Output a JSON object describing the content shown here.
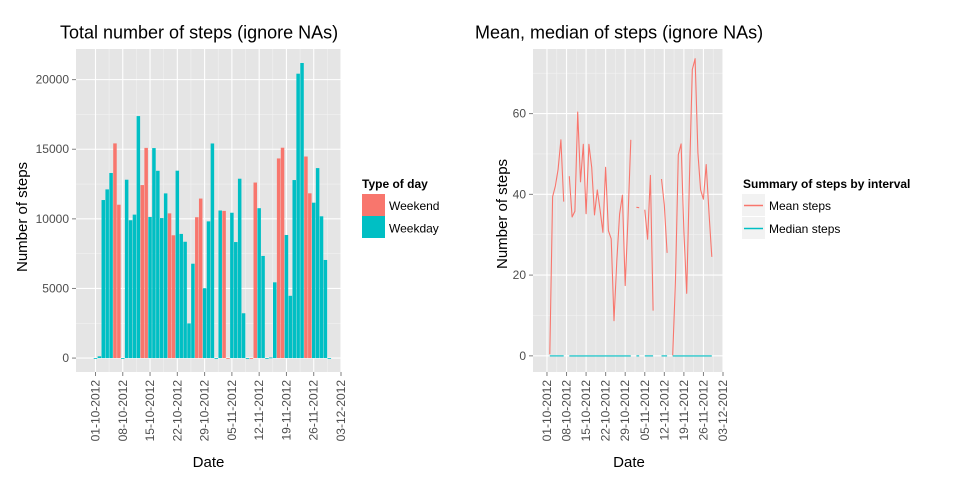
{
  "chart_data": [
    {
      "type": "bar",
      "title": "Total number of steps (ignore NAs)",
      "xlabel": "Date",
      "ylabel": "Number of steps",
      "ylim": [
        -1000,
        22200
      ],
      "y_ticks": [
        0,
        5000,
        10000,
        15000,
        20000
      ],
      "x_ticks": [
        "01-10-2012",
        "08-10-2012",
        "15-10-2012",
        "22-10-2012",
        "29-10-2012",
        "05-11-2012",
        "12-11-2012",
        "19-11-2012",
        "26-11-2012",
        "03-12-2012"
      ],
      "xlim": [
        "2012-09-26",
        "2012-12-03"
      ],
      "grid": true,
      "legend": {
        "title": "Type of day",
        "position": "right",
        "entries": [
          {
            "name": "Weekend",
            "color": "#F8766D"
          },
          {
            "name": "Weekday",
            "color": "#00BFC4"
          }
        ]
      },
      "bars": [
        {
          "date": "2012-10-01",
          "steps": 0,
          "type": "Weekday"
        },
        {
          "date": "2012-10-02",
          "steps": 126,
          "type": "Weekday"
        },
        {
          "date": "2012-10-03",
          "steps": 11352,
          "type": "Weekday"
        },
        {
          "date": "2012-10-04",
          "steps": 12116,
          "type": "Weekday"
        },
        {
          "date": "2012-10-05",
          "steps": 13294,
          "type": "Weekday"
        },
        {
          "date": "2012-10-06",
          "steps": 15420,
          "type": "Weekend"
        },
        {
          "date": "2012-10-07",
          "steps": 11015,
          "type": "Weekend"
        },
        {
          "date": "2012-10-08",
          "steps": 0,
          "type": "Weekday"
        },
        {
          "date": "2012-10-09",
          "steps": 12811,
          "type": "Weekday"
        },
        {
          "date": "2012-10-10",
          "steps": 9900,
          "type": "Weekday"
        },
        {
          "date": "2012-10-11",
          "steps": 10304,
          "type": "Weekday"
        },
        {
          "date": "2012-10-12",
          "steps": 17382,
          "type": "Weekday"
        },
        {
          "date": "2012-10-13",
          "steps": 12426,
          "type": "Weekend"
        },
        {
          "date": "2012-10-14",
          "steps": 15098,
          "type": "Weekend"
        },
        {
          "date": "2012-10-15",
          "steps": 10139,
          "type": "Weekday"
        },
        {
          "date": "2012-10-16",
          "steps": 15084,
          "type": "Weekday"
        },
        {
          "date": "2012-10-17",
          "steps": 13452,
          "type": "Weekday"
        },
        {
          "date": "2012-10-18",
          "steps": 10056,
          "type": "Weekday"
        },
        {
          "date": "2012-10-19",
          "steps": 11829,
          "type": "Weekday"
        },
        {
          "date": "2012-10-20",
          "steps": 10395,
          "type": "Weekend"
        },
        {
          "date": "2012-10-21",
          "steps": 8821,
          "type": "Weekend"
        },
        {
          "date": "2012-10-22",
          "steps": 13460,
          "type": "Weekday"
        },
        {
          "date": "2012-10-23",
          "steps": 8918,
          "type": "Weekday"
        },
        {
          "date": "2012-10-24",
          "steps": 8355,
          "type": "Weekday"
        },
        {
          "date": "2012-10-25",
          "steps": 2492,
          "type": "Weekday"
        },
        {
          "date": "2012-10-26",
          "steps": 6778,
          "type": "Weekday"
        },
        {
          "date": "2012-10-27",
          "steps": 10119,
          "type": "Weekend"
        },
        {
          "date": "2012-10-28",
          "steps": 11458,
          "type": "Weekend"
        },
        {
          "date": "2012-10-29",
          "steps": 5018,
          "type": "Weekday"
        },
        {
          "date": "2012-10-30",
          "steps": 9819,
          "type": "Weekday"
        },
        {
          "date": "2012-10-31",
          "steps": 15414,
          "type": "Weekday"
        },
        {
          "date": "2012-11-01",
          "steps": 0,
          "type": "Weekday"
        },
        {
          "date": "2012-11-02",
          "steps": 10600,
          "type": "Weekday"
        },
        {
          "date": "2012-11-03",
          "steps": 10571,
          "type": "Weekend"
        },
        {
          "date": "2012-11-04",
          "steps": 0,
          "type": "Weekend"
        },
        {
          "date": "2012-11-05",
          "steps": 10439,
          "type": "Weekday"
        },
        {
          "date": "2012-11-06",
          "steps": 8334,
          "type": "Weekday"
        },
        {
          "date": "2012-11-07",
          "steps": 12883,
          "type": "Weekday"
        },
        {
          "date": "2012-11-08",
          "steps": 3219,
          "type": "Weekday"
        },
        {
          "date": "2012-11-09",
          "steps": 0,
          "type": "Weekday"
        },
        {
          "date": "2012-11-10",
          "steps": 0,
          "type": "Weekend"
        },
        {
          "date": "2012-11-11",
          "steps": 12608,
          "type": "Weekend"
        },
        {
          "date": "2012-11-12",
          "steps": 10765,
          "type": "Weekday"
        },
        {
          "date": "2012-11-13",
          "steps": 7336,
          "type": "Weekday"
        },
        {
          "date": "2012-11-14",
          "steps": 0,
          "type": "Weekday"
        },
        {
          "date": "2012-11-15",
          "steps": 41,
          "type": "Weekday"
        },
        {
          "date": "2012-11-16",
          "steps": 5441,
          "type": "Weekday"
        },
        {
          "date": "2012-11-17",
          "steps": 14339,
          "type": "Weekend"
        },
        {
          "date": "2012-11-18",
          "steps": 15110,
          "type": "Weekend"
        },
        {
          "date": "2012-11-19",
          "steps": 8841,
          "type": "Weekday"
        },
        {
          "date": "2012-11-20",
          "steps": 4472,
          "type": "Weekday"
        },
        {
          "date": "2012-11-21",
          "steps": 12787,
          "type": "Weekday"
        },
        {
          "date": "2012-11-22",
          "steps": 20427,
          "type": "Weekday"
        },
        {
          "date": "2012-11-23",
          "steps": 21194,
          "type": "Weekday"
        },
        {
          "date": "2012-11-24",
          "steps": 14478,
          "type": "Weekend"
        },
        {
          "date": "2012-11-25",
          "steps": 11834,
          "type": "Weekend"
        },
        {
          "date": "2012-11-26",
          "steps": 11162,
          "type": "Weekday"
        },
        {
          "date": "2012-11-27",
          "steps": 13646,
          "type": "Weekday"
        },
        {
          "date": "2012-11-28",
          "steps": 10183,
          "type": "Weekday"
        },
        {
          "date": "2012-11-29",
          "steps": 7047,
          "type": "Weekday"
        },
        {
          "date": "2012-11-30",
          "steps": 0,
          "type": "Weekday"
        }
      ]
    },
    {
      "type": "line",
      "title": "Mean, median of steps (ignore NAs)",
      "xlabel": "Date",
      "ylabel": "Number of steps",
      "ylim": [
        -4,
        76
      ],
      "y_ticks": [
        0,
        20,
        40,
        60
      ],
      "x_ticks": [
        "01-10-2012",
        "08-10-2012",
        "15-10-2012",
        "22-10-2012",
        "29-10-2012",
        "05-11-2012",
        "12-11-2012",
        "19-11-2012",
        "26-11-2012",
        "03-12-2012"
      ],
      "xlim": [
        "2012-09-26",
        "2012-12-03"
      ],
      "grid": true,
      "legend": {
        "title": "Summary of steps by interval",
        "position": "right",
        "entries": [
          {
            "name": "Mean steps",
            "color": "#F8766D"
          },
          {
            "name": "Median steps",
            "color": "#00BFC4"
          }
        ]
      },
      "series": [
        {
          "name": "Mean steps",
          "color": "#F8766D",
          "segments": [
            {
              "x": [
                "2012-10-02",
                "2012-10-03",
                "2012-10-04",
                "2012-10-05",
                "2012-10-06",
                "2012-10-07"
              ],
              "y": [
                0.4,
                39.4,
                42.1,
                46.2,
                53.5,
                38.2
              ]
            },
            {
              "x": [
                "2012-10-09",
                "2012-10-10",
                "2012-10-11",
                "2012-10-12",
                "2012-10-13",
                "2012-10-14",
                "2012-10-15",
                "2012-10-16",
                "2012-10-17",
                "2012-10-18",
                "2012-10-19",
                "2012-10-20",
                "2012-10-21",
                "2012-10-22",
                "2012-10-23",
                "2012-10-24",
                "2012-10-25",
                "2012-10-26",
                "2012-10-27",
                "2012-10-28",
                "2012-10-29",
                "2012-10-30",
                "2012-10-31"
              ],
              "y": [
                44.5,
                34.4,
                35.8,
                60.4,
                43.1,
                52.4,
                35.2,
                52.4,
                46.7,
                34.9,
                41.1,
                36.1,
                30.6,
                46.7,
                31.0,
                29.0,
                8.7,
                23.5,
                35.1,
                39.8,
                17.4,
                34.1,
                53.5
              ]
            },
            {
              "x": [
                "2012-11-02",
                "2012-11-03"
              ],
              "y": [
                36.8,
                36.7
              ]
            },
            {
              "x": [
                "2012-11-05",
                "2012-11-06",
                "2012-11-07",
                "2012-11-08"
              ],
              "y": [
                36.2,
                28.9,
                44.7,
                11.2
              ]
            },
            {
              "x": [
                "2012-11-11",
                "2012-11-12",
                "2012-11-13"
              ],
              "y": [
                43.8,
                37.4,
                25.5
              ]
            },
            {
              "x": [
                "2012-11-15",
                "2012-11-16",
                "2012-11-17",
                "2012-11-18",
                "2012-11-19",
                "2012-11-20",
                "2012-11-21",
                "2012-11-22",
                "2012-11-23",
                "2012-11-24",
                "2012-11-25",
                "2012-11-26",
                "2012-11-27",
                "2012-11-28",
                "2012-11-29"
              ],
              "y": [
                0.1,
                18.9,
                49.8,
                52.5,
                30.7,
                15.5,
                44.4,
                70.9,
                73.6,
                50.3,
                41.1,
                38.8,
                47.4,
                35.4,
                24.5
              ]
            }
          ]
        },
        {
          "name": "Median steps",
          "color": "#00BFC4",
          "segments": [
            {
              "x": [
                "2012-10-02",
                "2012-10-07"
              ],
              "y": [
                0,
                0
              ]
            },
            {
              "x": [
                "2012-10-09",
                "2012-10-31"
              ],
              "y": [
                0,
                0
              ]
            },
            {
              "x": [
                "2012-11-02",
                "2012-11-03"
              ],
              "y": [
                0,
                0
              ]
            },
            {
              "x": [
                "2012-11-05",
                "2012-11-08"
              ],
              "y": [
                0,
                0
              ]
            },
            {
              "x": [
                "2012-11-11",
                "2012-11-13"
              ],
              "y": [
                0,
                0
              ]
            },
            {
              "x": [
                "2012-11-15",
                "2012-11-29"
              ],
              "y": [
                0,
                0
              ]
            }
          ]
        }
      ]
    }
  ]
}
